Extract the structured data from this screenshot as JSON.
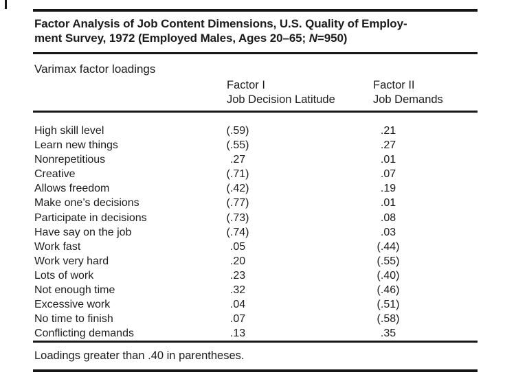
{
  "document": {
    "title_line1": "Factor Analysis of Job Content Dimensions, U.S. Quality of Employ-",
    "title_line2_prefix": "ment Survey, 1972 (Employed Males, Ages 20–65; ",
    "title_n": "N",
    "title_line2_suffix": "=950)",
    "section_label": "Varimax factor loadings",
    "footnote": "Loadings greater than .40 in parentheses."
  },
  "table": {
    "columns": [
      {
        "line1": "Factor I",
        "line2": "Job Decision Latitude"
      },
      {
        "line1": "Factor II",
        "line2": "Job Demands"
      }
    ],
    "rows": [
      {
        "label": "High skill level",
        "factor1": "(.59)",
        "factor2": ".21"
      },
      {
        "label": "Learn new things",
        "factor1": "(.55)",
        "factor2": ".27"
      },
      {
        "label": "Nonrepetitious",
        "factor1": ".27",
        "factor2": ".01"
      },
      {
        "label": "Creative",
        "factor1": "(.71)",
        "factor2": ".07"
      },
      {
        "label": "Allows freedom",
        "factor1": "(.42)",
        "factor2": ".19"
      },
      {
        "label": "Make one’s decisions",
        "factor1": "(.77)",
        "factor2": ".01"
      },
      {
        "label": "Participate in decisions",
        "factor1": "(.73)",
        "factor2": ".08"
      },
      {
        "label": "Have say on the job",
        "factor1": "(.74)",
        "factor2": ".03"
      },
      {
        "label": "Work fast",
        "factor1": ".05",
        "factor2": "(.44)"
      },
      {
        "label": "Work very hard",
        "factor1": ".20",
        "factor2": "(.55)"
      },
      {
        "label": "Lots of work",
        "factor1": ".23",
        "factor2": "(.40)"
      },
      {
        "label": "Not enough time",
        "factor1": ".32",
        "factor2": "(.46)"
      },
      {
        "label": "Excessive work",
        "factor1": ".04",
        "factor2": "(.51)"
      },
      {
        "label": "No time to finish",
        "factor1": ".07",
        "factor2": "(.58)"
      },
      {
        "label": "Conflicting demands",
        "factor1": ".13",
        "factor2": ".35"
      }
    ]
  },
  "colors": {
    "ink": "#1b1b1b",
    "paper": "#ffffff"
  }
}
